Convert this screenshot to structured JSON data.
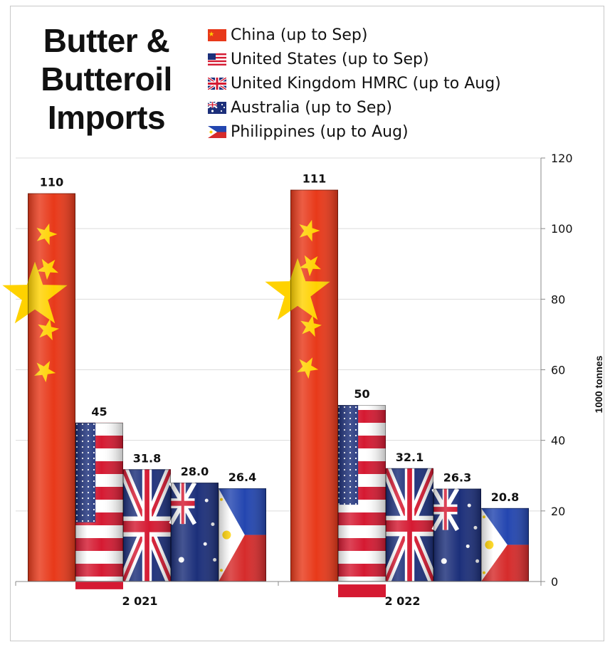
{
  "colors": {
    "china_red": "#e8391a",
    "china_star": "#ffd200",
    "navy": "#1c2f7a",
    "stripe_red": "#d51a32",
    "ph_blue": "#2346b0",
    "ph_red": "#d62b2b",
    "gridline": "#dcdcdc"
  },
  "chart_data": {
    "type": "bar",
    "title": "Butter & Butteroil Imports",
    "title_lines": [
      "Butter &",
      "Butteroil",
      "Imports"
    ],
    "categories": [
      "2 021",
      "2 022"
    ],
    "series": [
      {
        "name": "China (up to Sep)",
        "flag": "china-flag",
        "values": [
          110,
          111
        ],
        "labels": [
          "110",
          "111"
        ]
      },
      {
        "name": "United States (up to Sep)",
        "flag": "us-flag",
        "values": [
          45,
          50
        ],
        "labels": [
          "45",
          "50"
        ]
      },
      {
        "name": "United Kingdom HMRC (up to Aug)",
        "flag": "uk-flag",
        "values": [
          31.8,
          32.1
        ],
        "labels": [
          "31.8",
          "32.1"
        ]
      },
      {
        "name": "Australia (up to Sep)",
        "flag": "australia-flag",
        "values": [
          28.0,
          26.3
        ],
        "labels": [
          "28.0",
          "26.3"
        ]
      },
      {
        "name": "Philippines (up to Aug)",
        "flag": "philippines-flag",
        "values": [
          26.4,
          20.8
        ],
        "labels": [
          "26.4",
          "20.8"
        ]
      }
    ],
    "ylabel": "1000 tonnes",
    "ylim": [
      0,
      120
    ],
    "yticks": [
      "0",
      "20",
      "40",
      "60",
      "80",
      "100",
      "120"
    ],
    "yaxis_position": "right",
    "grid": true,
    "legend_position": "top-right"
  }
}
